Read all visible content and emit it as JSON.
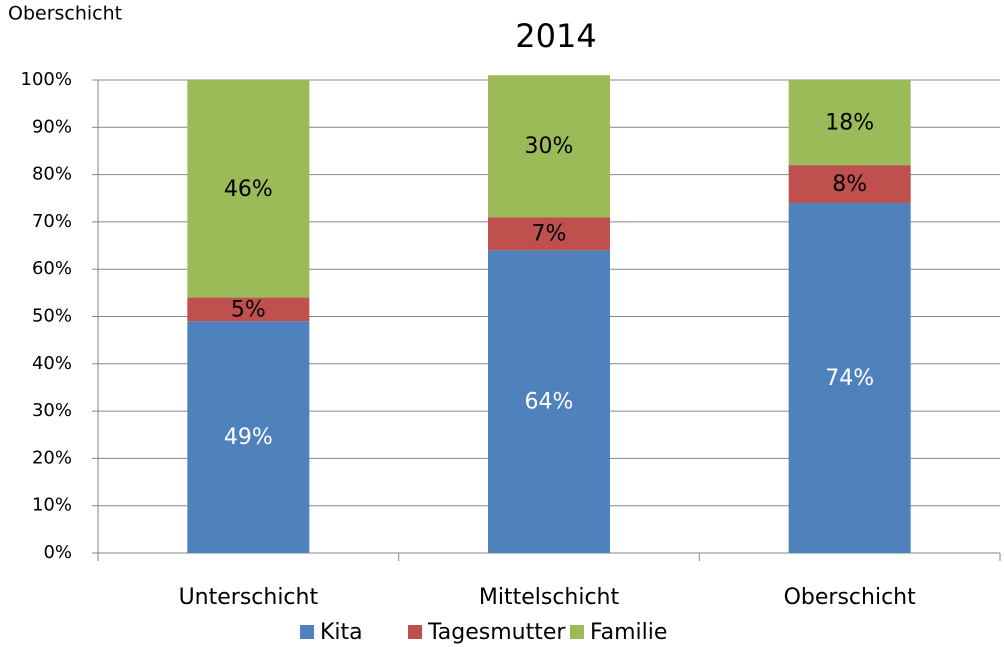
{
  "chart_data": {
    "type": "stacked_bar",
    "title": "2014",
    "corner_label": "Oberschicht",
    "categories": [
      "Unterschicht",
      "Mittelschicht",
      "Oberschicht"
    ],
    "series": [
      {
        "name": "Kita",
        "color": "#4f81bd",
        "label_color": "#ffffff",
        "values": [
          49,
          64,
          74
        ],
        "value_labels": [
          "49%",
          "64%",
          "74%"
        ]
      },
      {
        "name": "Tagesmutter",
        "color": "#c0504d",
        "label_color": "#000000",
        "values": [
          5,
          7,
          8
        ],
        "value_labels": [
          "5%",
          "7%",
          "8%"
        ]
      },
      {
        "name": "Familie",
        "color": "#9bbb59",
        "label_color": "#000000",
        "values": [
          46,
          30,
          18
        ],
        "value_labels": [
          "46%",
          "30%",
          "18%"
        ]
      }
    ],
    "ylim": [
      0,
      100
    ],
    "yticks": [
      {
        "value": 0,
        "label": "0%"
      },
      {
        "value": 10,
        "label": "10%"
      },
      {
        "value": 20,
        "label": "20%"
      },
      {
        "value": 30,
        "label": "30%"
      },
      {
        "value": 40,
        "label": "40%"
      },
      {
        "value": 50,
        "label": "50%"
      },
      {
        "value": 60,
        "label": "60%"
      },
      {
        "value": 70,
        "label": "70%"
      },
      {
        "value": 80,
        "label": "80%"
      },
      {
        "value": 90,
        "label": "90%"
      },
      {
        "value": 100,
        "label": "100%"
      }
    ],
    "grid": true,
    "legend": "bottom"
  }
}
